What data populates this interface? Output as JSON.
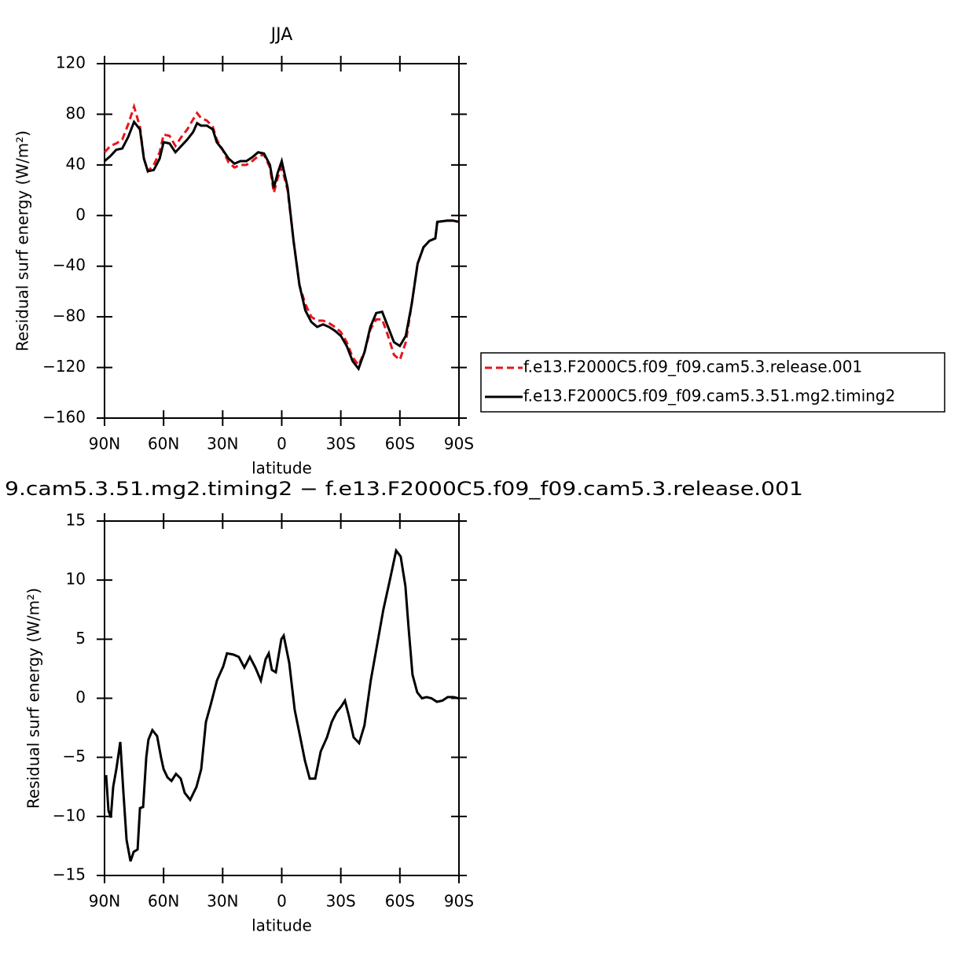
{
  "chart_data": [
    {
      "type": "line",
      "title": "JJA",
      "x_label": "latitude",
      "y_label": "Residual surf energy (W/m²)",
      "xlim": [
        90,
        -90
      ],
      "ylim": [
        -160,
        120
      ],
      "xticks": [
        {
          "value": 90,
          "label": "90N"
        },
        {
          "value": 60,
          "label": "60N"
        },
        {
          "value": 30,
          "label": "30N"
        },
        0,
        {
          "value": -30,
          "label": "30S"
        },
        {
          "value": -60,
          "label": "60S"
        },
        {
          "value": -90,
          "label": "90S"
        }
      ],
      "yticks": [
        {
          "value": -160,
          "label": "−160"
        },
        {
          "value": -120,
          "label": "−120"
        },
        {
          "value": -80,
          "label": "−80"
        },
        {
          "value": -40,
          "label": "−40"
        },
        0,
        40,
        80,
        120
      ],
      "legend": "right",
      "x": [
        90,
        87,
        84,
        81,
        78,
        75,
        72,
        70,
        68,
        65,
        62,
        60,
        57,
        54,
        51,
        48,
        45,
        43,
        41,
        38,
        35,
        33,
        30,
        27,
        24,
        21,
        18,
        15,
        12,
        9,
        6,
        4,
        2,
        0,
        -3,
        -6,
        -9,
        -12,
        -15,
        -18,
        -21,
        -24,
        -27,
        -30,
        -33,
        -36,
        -39,
        -42,
        -45,
        -48,
        -51,
        -54,
        -57,
        -60,
        -63,
        -66,
        -69,
        -72,
        -75,
        -78,
        -79,
        -84,
        -87,
        -90
      ],
      "series": [
        {
          "name": "f.e13.F2000C5.f09_f09.cam5.3.release.001",
          "color": "#e8141b",
          "line_style": "dashed",
          "values": [
            50,
            55,
            57,
            60,
            72,
            86,
            70,
            45,
            35,
            40,
            50,
            64,
            63,
            55,
            62,
            68,
            76,
            81,
            77,
            75,
            70,
            60,
            52,
            42,
            38,
            40,
            40,
            43,
            47,
            48,
            38,
            18,
            30,
            38,
            20,
            -20,
            -55,
            -70,
            -80,
            -83,
            -83,
            -85,
            -88,
            -92,
            -100,
            -112,
            -118,
            -108,
            -90,
            -82,
            -82,
            -95,
            -110,
            -114,
            -100,
            -70,
            -38,
            -25,
            -20,
            -18,
            -5,
            -4,
            -4,
            -5
          ]
        },
        {
          "name": "f.e13.F2000C5.f09_f09.cam5.3.51.mg2.timing2",
          "color": "#000000",
          "line_style": "solid",
          "values": [
            43,
            47,
            52,
            53,
            62,
            74,
            68,
            45,
            35,
            36,
            45,
            58,
            57,
            50,
            55,
            60,
            66,
            73,
            71,
            71,
            68,
            58,
            52,
            45,
            41,
            43,
            43,
            46,
            50,
            49,
            40,
            22,
            34,
            43,
            22,
            -20,
            -55,
            -75,
            -84,
            -88,
            -86,
            -88,
            -91,
            -95,
            -103,
            -115,
            -121,
            -108,
            -88,
            -77,
            -76,
            -88,
            -100,
            -103,
            -95,
            -70,
            -38,
            -25,
            -20,
            -18,
            -5,
            -4,
            -4,
            -5
          ]
        }
      ]
    },
    {
      "type": "line",
      "title": "9.cam5.3.51.mg2.timing2 − f.e13.F2000C5.f09_f09.cam5.3.release.001",
      "x_label": "latitude",
      "y_label": "Residual surf energy (W/m²)",
      "xlim": [
        90,
        -90
      ],
      "ylim": [
        -15,
        15
      ],
      "xticks": [
        {
          "value": 90,
          "label": "90N"
        },
        {
          "value": 60,
          "label": "60N"
        },
        {
          "value": 30,
          "label": "30N"
        },
        0,
        {
          "value": -30,
          "label": "30S"
        },
        {
          "value": -60,
          "label": "60S"
        },
        {
          "value": -90,
          "label": "90S"
        }
      ],
      "yticks": [
        {
          "value": -15,
          "label": "−15"
        },
        {
          "value": -10,
          "label": "−10"
        },
        {
          "value": -5,
          "label": "−5"
        },
        0,
        5,
        10,
        15
      ],
      "x": [
        89.2,
        88,
        86.8,
        85.6,
        84,
        82,
        80.4,
        78.8,
        76.8,
        75.2,
        73.2,
        72,
        70.4,
        68.8,
        67.7,
        65.7,
        63.3,
        61.3,
        60,
        58,
        56,
        53.7,
        51.3,
        49.3,
        46.5,
        43.3,
        40.9,
        38.5,
        36,
        32.9,
        29.7,
        27.8,
        24.6,
        21.8,
        19,
        16.2,
        13.4,
        10.6,
        8.2,
        6.6,
        5,
        3,
        0.2,
        -1,
        -3.8,
        -6.6,
        -9.4,
        -11.8,
        -14.2,
        -17,
        -19.8,
        -23,
        -25.4,
        -27.8,
        -30.2,
        -32.1,
        -34.1,
        -36.5,
        -39.3,
        -42,
        -45.2,
        -48.4,
        -51.6,
        -54.9,
        -58.1,
        -60.4,
        -62.8,
        -64.4,
        -66.4,
        -68.8,
        -71.2,
        -73.6,
        -76,
        -78.8,
        -81.6,
        -84.3,
        -87.2,
        -89.6
      ],
      "color": "#000000",
      "values": [
        -6.5,
        -9.5,
        -10.1,
        -7.5,
        -6,
        -3.7,
        -8,
        -12,
        -13.8,
        -13,
        -12.8,
        -9.3,
        -9.2,
        -5,
        -3.5,
        -2.7,
        -3.2,
        -5,
        -6,
        -6.7,
        -7,
        -6.4,
        -6.8,
        -8,
        -8.6,
        -7.5,
        -6,
        -2,
        -0.5,
        1.5,
        2.7,
        3.8,
        3.7,
        3.5,
        2.6,
        3.5,
        2.6,
        1.5,
        3.3,
        3.8,
        2.4,
        2.2,
        5.0,
        5.3,
        3.0,
        -1.0,
        -3.3,
        -5.3,
        -6.8,
        -6.8,
        -4.5,
        -3.3,
        -2,
        -1.2,
        -0.7,
        -0.2,
        -1.5,
        -3.3,
        -3.8,
        -2.3,
        1.5,
        4.5,
        7.5,
        10,
        12.5,
        12,
        9.5,
        6,
        2,
        0.5,
        0,
        0.1,
        0,
        -0.3,
        -0.2,
        0.1,
        0.1,
        0
      ]
    }
  ]
}
